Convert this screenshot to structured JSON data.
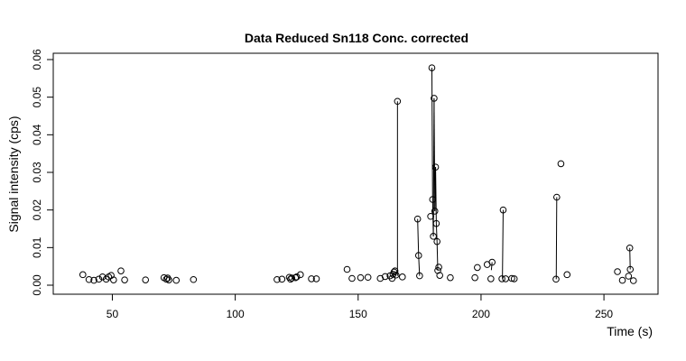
{
  "chart_data": {
    "type": "scatter",
    "title": "Data Reduced Sn118 Conc. corrected",
    "xlabel": "Time (s)",
    "ylabel": "Signal intensity (cps)",
    "xlim": [
      30,
      272
    ],
    "ylim": [
      -0.0012,
      0.0612
    ],
    "x_ticks": [
      50,
      100,
      150,
      200,
      250
    ],
    "x_tick_labels": [
      "50",
      "100",
      "150",
      "200",
      "250"
    ],
    "y_ticks": [
      0.0,
      0.01,
      0.02,
      0.03,
      0.04,
      0.05,
      0.06
    ],
    "y_tick_labels": [
      "0.00",
      "0.01",
      "0.02",
      "0.03",
      "0.04",
      "0.05",
      "0.06"
    ],
    "grid": false,
    "legend": "none",
    "marker": "open-circle",
    "color": "#000000",
    "points": [
      [
        38,
        0.0028
      ],
      [
        40.5,
        0.0015
      ],
      [
        42.5,
        0.0013
      ],
      [
        44.5,
        0.0016
      ],
      [
        46,
        0.0022
      ],
      [
        47.5,
        0.0016
      ],
      [
        48.5,
        0.0022
      ],
      [
        49.5,
        0.0026
      ],
      [
        50.5,
        0.0014
      ],
      [
        53.5,
        0.0038
      ],
      [
        55,
        0.0014
      ],
      [
        63.5,
        0.0014
      ],
      [
        71,
        0.002
      ],
      [
        72,
        0.0016
      ],
      [
        72.5,
        0.0019
      ],
      [
        73,
        0.0014
      ],
      [
        76,
        0.0013
      ],
      [
        83,
        0.0015
      ],
      [
        117,
        0.0015
      ],
      [
        119,
        0.0016
      ],
      [
        122,
        0.0021
      ],
      [
        122.5,
        0.0016
      ],
      [
        123,
        0.0019
      ],
      [
        124.5,
        0.002
      ],
      [
        125,
        0.0022
      ],
      [
        126.5,
        0.0028
      ],
      [
        131,
        0.0017
      ],
      [
        133,
        0.0017
      ],
      [
        145.5,
        0.0042
      ],
      [
        147.5,
        0.0018
      ],
      [
        151,
        0.002
      ],
      [
        154,
        0.0021
      ],
      [
        159,
        0.0018
      ],
      [
        161,
        0.0023
      ],
      [
        163,
        0.0025
      ],
      [
        163.8,
        0.0018
      ],
      [
        164.2,
        0.0029
      ],
      [
        164.6,
        0.0035
      ],
      [
        165,
        0.0038
      ],
      [
        165.4,
        0.0027
      ],
      [
        166,
        0.0489
      ],
      [
        168,
        0.0022
      ],
      [
        174.2,
        0.0176
      ],
      [
        174.6,
        0.0079
      ],
      [
        175,
        0.0025
      ],
      [
        179.5,
        0.0183
      ],
      [
        180,
        0.0578
      ],
      [
        180.3,
        0.0228
      ],
      [
        180.6,
        0.013
      ],
      [
        180.9,
        0.0497
      ],
      [
        181.2,
        0.0197
      ],
      [
        181.5,
        0.0314
      ],
      [
        181.8,
        0.0164
      ],
      [
        182.1,
        0.0116
      ],
      [
        182.4,
        0.0039
      ],
      [
        182.8,
        0.0048
      ],
      [
        183.2,
        0.0026
      ],
      [
        187.5,
        0.002
      ],
      [
        197.5,
        0.002
      ],
      [
        198.5,
        0.0047
      ],
      [
        202.5,
        0.0055
      ],
      [
        204,
        0.0017
      ],
      [
        204.5,
        0.0061
      ],
      [
        208.5,
        0.0017
      ],
      [
        209,
        0.02
      ],
      [
        210,
        0.0017
      ],
      [
        212.5,
        0.0018
      ],
      [
        213.5,
        0.0017
      ],
      [
        230.5,
        0.0016
      ],
      [
        230.8,
        0.0234
      ],
      [
        232.5,
        0.0323
      ],
      [
        235,
        0.0028
      ],
      [
        255.5,
        0.0036
      ],
      [
        257.5,
        0.0013
      ],
      [
        260,
        0.0024
      ],
      [
        260.5,
        0.0099
      ],
      [
        260.7,
        0.0042
      ],
      [
        262,
        0.0012
      ]
    ],
    "segments": [
      [
        [
          166,
          0.0489
        ],
        [
          166,
          0.0025
        ]
      ],
      [
        [
          174.2,
          0.0176
        ],
        [
          174.6,
          0.0079
        ]
      ],
      [
        [
          174.6,
          0.0079
        ],
        [
          175,
          0.0025
        ]
      ],
      [
        [
          180,
          0.0578
        ],
        [
          180.3,
          0.0228
        ]
      ],
      [
        [
          180.3,
          0.0228
        ],
        [
          180.6,
          0.013
        ]
      ],
      [
        [
          180.6,
          0.013
        ],
        [
          180.9,
          0.0497
        ]
      ],
      [
        [
          180.9,
          0.0497
        ],
        [
          181.2,
          0.0197
        ]
      ],
      [
        [
          181.2,
          0.0197
        ],
        [
          181.5,
          0.0314
        ]
      ],
      [
        [
          181.5,
          0.0314
        ],
        [
          181.8,
          0.0164
        ]
      ],
      [
        [
          181.8,
          0.0164
        ],
        [
          182.1,
          0.0116
        ]
      ],
      [
        [
          182.1,
          0.0116
        ],
        [
          182.4,
          0.0039
        ]
      ],
      [
        [
          209,
          0.02
        ],
        [
          208.7,
          0.0017
        ]
      ],
      [
        [
          230.8,
          0.0234
        ],
        [
          230.6,
          0.0016
        ]
      ],
      [
        [
          260.5,
          0.0099
        ],
        [
          260.7,
          0.0042
        ]
      ],
      [
        [
          204.5,
          0.0061
        ],
        [
          204.2,
          0.004
        ]
      ]
    ]
  }
}
